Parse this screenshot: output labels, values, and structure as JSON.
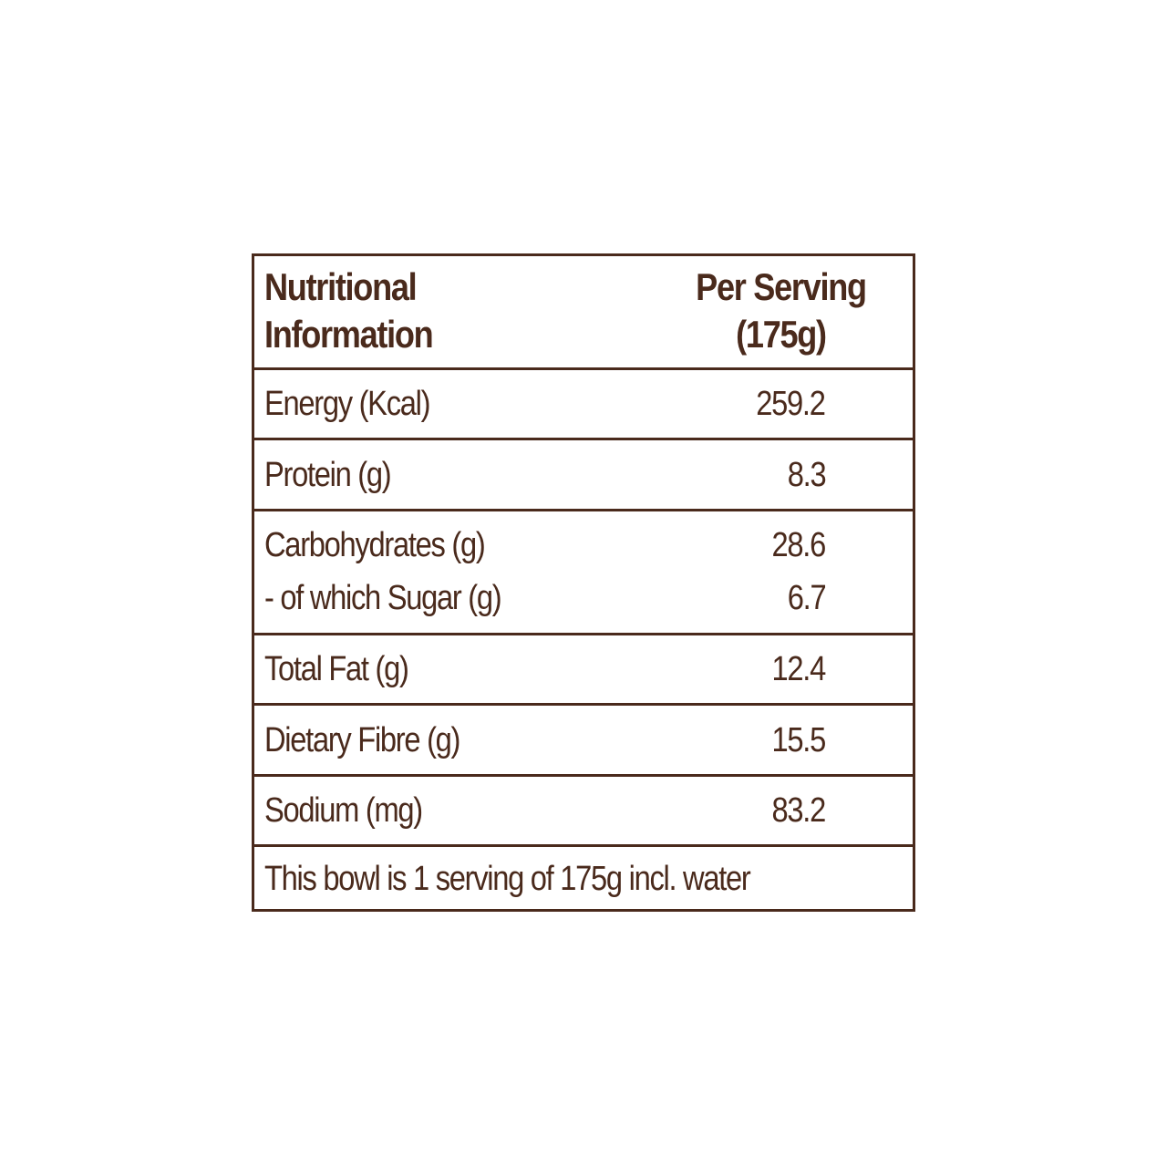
{
  "header": {
    "left_lines": [
      "Nutritional",
      "Information"
    ],
    "right_lines": [
      "Per Serving",
      "(175g)"
    ]
  },
  "rows": [
    {
      "label": "Energy (Kcal)",
      "value": "259.2"
    },
    {
      "label": "Protein (g)",
      "value": "8.3"
    },
    {
      "label": "Carbohydrates (g)",
      "value": "28.6",
      "sub_label": "- of which Sugar (g)",
      "sub_value": "6.7"
    },
    {
      "label": "Total Fat (g)",
      "value": "12.4"
    },
    {
      "label": "Dietary Fibre (g)",
      "value": "15.5"
    },
    {
      "label": "Sodium (mg)",
      "value": "83.2"
    }
  ],
  "footnote": "This bowl is 1 serving of 175g incl. water",
  "colors": {
    "text": "#4a2a1c",
    "border": "#4a2a1c",
    "background": "#ffffff"
  }
}
